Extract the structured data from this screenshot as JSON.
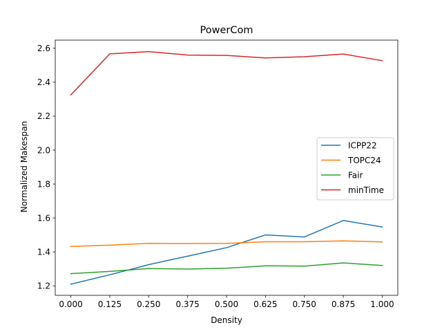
{
  "chart_data": {
    "type": "line",
    "title": "PowerCom",
    "xlabel": "Density",
    "ylabel": "Normalized Makespan",
    "x": [
      0.0,
      0.125,
      0.25,
      0.375,
      0.5,
      0.625,
      0.75,
      0.875,
      1.0
    ],
    "x_tick_labels": [
      "0.000",
      "0.125",
      "0.250",
      "0.375",
      "0.500",
      "0.625",
      "0.750",
      "0.875",
      "1.000"
    ],
    "xlim": [
      -0.05,
      1.05
    ],
    "y_ticks": [
      1.2,
      1.4,
      1.6,
      1.8,
      2.0,
      2.2,
      2.4,
      2.6
    ],
    "y_tick_labels": [
      "1.2",
      "1.4",
      "1.6",
      "1.8",
      "2.0",
      "2.2",
      "2.4",
      "2.6"
    ],
    "ylim": [
      1.144,
      2.648
    ],
    "grid": false,
    "legend_position": "center-right",
    "series": [
      {
        "name": "ICPP22",
        "color": "#1f77b4",
        "values": [
          1.21,
          1.265,
          1.325,
          1.375,
          1.425,
          1.5,
          1.488,
          1.585,
          1.547
        ]
      },
      {
        "name": "TOPC24",
        "color": "#ff7f0e",
        "values": [
          1.432,
          1.44,
          1.45,
          1.449,
          1.45,
          1.46,
          1.46,
          1.465,
          1.459
        ]
      },
      {
        "name": "Fair",
        "color": "#2ca02c",
        "values": [
          1.272,
          1.285,
          1.302,
          1.299,
          1.304,
          1.318,
          1.316,
          1.335,
          1.32
        ]
      },
      {
        "name": "minTime",
        "color": "#d62728",
        "values": [
          2.325,
          2.567,
          2.58,
          2.56,
          2.558,
          2.543,
          2.55,
          2.566,
          2.527
        ]
      }
    ]
  }
}
